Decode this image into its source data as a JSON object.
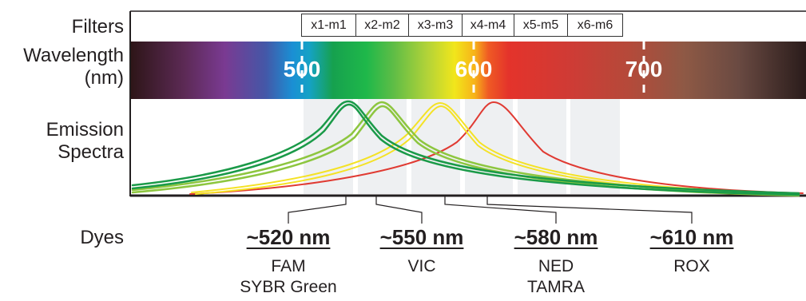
{
  "row_labels": {
    "filters": "Filters",
    "wavelength_line1": "Wavelength",
    "wavelength_line2": "(nm)",
    "emission_line1": "Emission",
    "emission_line2": "Spectra",
    "dyes": "Dyes"
  },
  "filters": [
    "x1-m1",
    "x2-m2",
    "x3-m3",
    "x4-m4",
    "x5-m5",
    "x6-m6"
  ],
  "wavelength_ticks": [
    "500",
    "600",
    "700"
  ],
  "dyes": [
    {
      "peak": "~520 nm",
      "names": [
        "FAM",
        "SYBR Green"
      ],
      "color": "#1a9a48"
    },
    {
      "peak": "~550 nm",
      "names": [
        "VIC"
      ],
      "color": "#8dc63f"
    },
    {
      "peak": "~580 nm",
      "names": [
        "NED",
        "TAMRA"
      ],
      "color": "#f4e225"
    },
    {
      "peak": "~610 nm",
      "names": [
        "ROX"
      ],
      "color": "#e03a32"
    }
  ]
}
